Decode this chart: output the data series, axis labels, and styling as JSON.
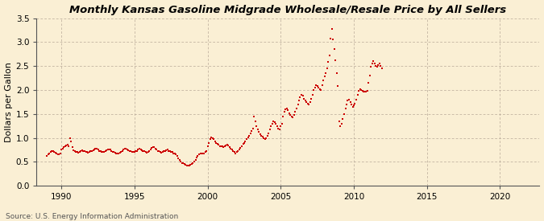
{
  "title": "Monthly Kansas Gasoline Midgrade Wholesale/Resale Price by All Sellers",
  "ylabel": "Dollars per Gallon",
  "source": "Source: U.S. Energy Information Administration",
  "background_color": "#faefd4",
  "plot_bg_color": "#faefd4",
  "marker_color": "#cc0000",
  "xlim_left": 1988.3,
  "xlim_right": 2022.7,
  "ylim_bottom": 0.0,
  "ylim_top": 3.5,
  "xticks": [
    1990,
    1995,
    2000,
    2005,
    2010,
    2015,
    2020
  ],
  "yticks": [
    0.0,
    0.5,
    1.0,
    1.5,
    2.0,
    2.5,
    3.0,
    3.5
  ],
  "data": {
    "dates": [
      1989.0,
      1989.08,
      1989.17,
      1989.25,
      1989.33,
      1989.42,
      1989.5,
      1989.58,
      1989.67,
      1989.75,
      1989.83,
      1989.92,
      1990.0,
      1990.08,
      1990.17,
      1990.25,
      1990.33,
      1990.42,
      1990.5,
      1990.58,
      1990.67,
      1990.75,
      1990.83,
      1990.92,
      1991.0,
      1991.08,
      1991.17,
      1991.25,
      1991.33,
      1991.42,
      1991.5,
      1991.58,
      1991.67,
      1991.75,
      1991.83,
      1991.92,
      1992.0,
      1992.08,
      1992.17,
      1992.25,
      1992.33,
      1992.42,
      1992.5,
      1992.58,
      1992.67,
      1992.75,
      1992.83,
      1992.92,
      1993.0,
      1993.08,
      1993.17,
      1993.25,
      1993.33,
      1993.42,
      1993.5,
      1993.58,
      1993.67,
      1993.75,
      1993.83,
      1993.92,
      1994.0,
      1994.08,
      1994.17,
      1994.25,
      1994.33,
      1994.42,
      1994.5,
      1994.58,
      1994.67,
      1994.75,
      1994.83,
      1994.92,
      1995.0,
      1995.08,
      1995.17,
      1995.25,
      1995.33,
      1995.42,
      1995.5,
      1995.58,
      1995.67,
      1995.75,
      1995.83,
      1995.92,
      1996.0,
      1996.08,
      1996.17,
      1996.25,
      1996.33,
      1996.42,
      1996.5,
      1996.58,
      1996.67,
      1996.75,
      1996.83,
      1996.92,
      1997.0,
      1997.08,
      1997.17,
      1997.25,
      1997.33,
      1997.42,
      1997.5,
      1997.58,
      1997.67,
      1997.75,
      1997.83,
      1997.92,
      1998.0,
      1998.08,
      1998.17,
      1998.25,
      1998.33,
      1998.42,
      1998.5,
      1998.58,
      1998.67,
      1998.75,
      1998.83,
      1998.92,
      1999.0,
      1999.08,
      1999.17,
      1999.25,
      1999.33,
      1999.42,
      1999.5,
      1999.58,
      1999.67,
      1999.75,
      1999.83,
      1999.92,
      2000.0,
      2000.08,
      2000.17,
      2000.25,
      2000.33,
      2000.42,
      2000.5,
      2000.58,
      2000.67,
      2000.75,
      2000.83,
      2000.92,
      2001.0,
      2001.08,
      2001.17,
      2001.25,
      2001.33,
      2001.42,
      2001.5,
      2001.58,
      2001.67,
      2001.75,
      2001.83,
      2001.92,
      2002.0,
      2002.08,
      2002.17,
      2002.25,
      2002.33,
      2002.42,
      2002.5,
      2002.58,
      2002.67,
      2002.75,
      2002.83,
      2002.92,
      2003.0,
      2003.08,
      2003.17,
      2003.25,
      2003.33,
      2003.42,
      2003.5,
      2003.58,
      2003.67,
      2003.75,
      2003.83,
      2003.92,
      2004.0,
      2004.08,
      2004.17,
      2004.25,
      2004.33,
      2004.42,
      2004.5,
      2004.58,
      2004.67,
      2004.75,
      2004.83,
      2004.92,
      2005.0,
      2005.08,
      2005.17,
      2005.25,
      2005.33,
      2005.42,
      2005.5,
      2005.58,
      2005.67,
      2005.75,
      2005.83,
      2005.92,
      2006.0,
      2006.08,
      2006.17,
      2006.25,
      2006.33,
      2006.42,
      2006.5,
      2006.58,
      2006.67,
      2006.75,
      2006.83,
      2006.92,
      2007.0,
      2007.08,
      2007.17,
      2007.25,
      2007.33,
      2007.42,
      2007.5,
      2007.58,
      2007.67,
      2007.75,
      2007.83,
      2007.92,
      2008.0,
      2008.08,
      2008.17,
      2008.25,
      2008.33,
      2008.42,
      2008.5,
      2008.58,
      2008.67,
      2008.75,
      2008.83,
      2008.92,
      2009.0,
      2009.08,
      2009.17,
      2009.25,
      2009.33,
      2009.42,
      2009.5,
      2009.58,
      2009.67,
      2009.75,
      2009.83,
      2009.92,
      2010.0,
      2010.08,
      2010.17,
      2010.25,
      2010.33,
      2010.42,
      2010.5,
      2010.58,
      2010.67,
      2010.75,
      2010.83,
      2010.92,
      2011.0,
      2011.08,
      2011.17,
      2011.25,
      2011.33,
      2011.42,
      2011.5,
      2011.58,
      2011.67,
      2011.75,
      2011.83,
      2011.92
    ],
    "prices": [
      0.63,
      0.65,
      0.67,
      0.7,
      0.72,
      0.73,
      0.71,
      0.69,
      0.67,
      0.65,
      0.66,
      0.67,
      0.75,
      0.78,
      0.8,
      0.82,
      0.84,
      0.85,
      0.83,
      1.0,
      0.92,
      0.8,
      0.74,
      0.72,
      0.71,
      0.7,
      0.69,
      0.71,
      0.73,
      0.74,
      0.73,
      0.72,
      0.71,
      0.7,
      0.69,
      0.7,
      0.72,
      0.73,
      0.74,
      0.76,
      0.78,
      0.77,
      0.75,
      0.73,
      0.72,
      0.71,
      0.7,
      0.71,
      0.72,
      0.74,
      0.75,
      0.76,
      0.75,
      0.73,
      0.71,
      0.7,
      0.69,
      0.68,
      0.67,
      0.68,
      0.69,
      0.7,
      0.73,
      0.76,
      0.78,
      0.77,
      0.75,
      0.74,
      0.73,
      0.72,
      0.71,
      0.7,
      0.71,
      0.72,
      0.73,
      0.75,
      0.77,
      0.76,
      0.74,
      0.73,
      0.72,
      0.7,
      0.69,
      0.7,
      0.73,
      0.76,
      0.79,
      0.81,
      0.8,
      0.78,
      0.75,
      0.73,
      0.72,
      0.7,
      0.69,
      0.7,
      0.72,
      0.73,
      0.74,
      0.75,
      0.73,
      0.72,
      0.71,
      0.7,
      0.68,
      0.67,
      0.65,
      0.63,
      0.57,
      0.54,
      0.5,
      0.48,
      0.47,
      0.46,
      0.44,
      0.43,
      0.42,
      0.43,
      0.44,
      0.45,
      0.47,
      0.5,
      0.54,
      0.59,
      0.63,
      0.66,
      0.68,
      0.68,
      0.67,
      0.68,
      0.7,
      0.72,
      0.82,
      0.9,
      0.98,
      1.01,
      1.0,
      0.97,
      0.93,
      0.89,
      0.87,
      0.85,
      0.83,
      0.82,
      0.82,
      0.81,
      0.82,
      0.84,
      0.86,
      0.84,
      0.81,
      0.78,
      0.75,
      0.73,
      0.7,
      0.68,
      0.7,
      0.72,
      0.75,
      0.79,
      0.83,
      0.87,
      0.9,
      0.93,
      0.97,
      1.01,
      1.05,
      1.1,
      1.15,
      1.2,
      1.45,
      1.35,
      1.25,
      1.18,
      1.12,
      1.08,
      1.05,
      1.02,
      1.0,
      0.98,
      1.0,
      1.04,
      1.1,
      1.18,
      1.25,
      1.3,
      1.35,
      1.33,
      1.3,
      1.25,
      1.2,
      1.18,
      1.25,
      1.3,
      1.45,
      1.55,
      1.6,
      1.62,
      1.58,
      1.52,
      1.48,
      1.45,
      1.43,
      1.48,
      1.55,
      1.62,
      1.7,
      1.78,
      1.85,
      1.9,
      1.88,
      1.82,
      1.78,
      1.75,
      1.72,
      1.7,
      1.75,
      1.82,
      1.9,
      2.0,
      2.05,
      2.1,
      2.08,
      2.05,
      2.02,
      2.0,
      2.1,
      2.2,
      2.28,
      2.35,
      2.45,
      2.58,
      2.72,
      3.08,
      3.28,
      3.05,
      2.86,
      2.62,
      2.35,
      2.08,
      1.35,
      1.25,
      1.3,
      1.4,
      1.5,
      1.62,
      1.7,
      1.78,
      1.8,
      1.75,
      1.7,
      1.65,
      1.68,
      1.72,
      1.8,
      1.9,
      1.98,
      2.02,
      2.0,
      1.98,
      1.97,
      1.96,
      1.96,
      1.98,
      2.15,
      2.3,
      2.48,
      2.55,
      2.6,
      2.55,
      2.5,
      2.48,
      2.52,
      2.55,
      2.5,
      2.45
    ]
  }
}
